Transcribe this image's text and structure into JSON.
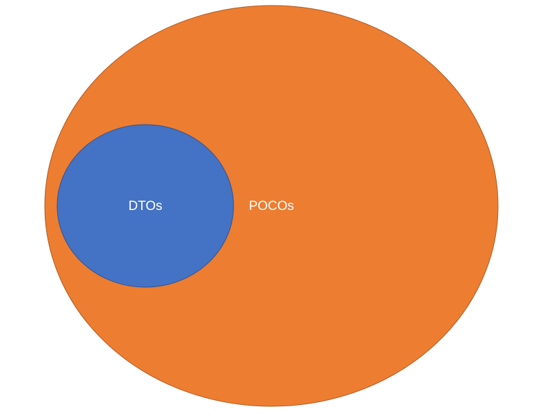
{
  "diagram": {
    "outer_set": {
      "label": "POCOs",
      "fill": "#ED7D31",
      "stroke": "#AE5A21"
    },
    "inner_set": {
      "label": "DTOs",
      "fill": "#4472C4",
      "stroke": "#2F528F"
    },
    "label_color": "#FFFFFF"
  }
}
